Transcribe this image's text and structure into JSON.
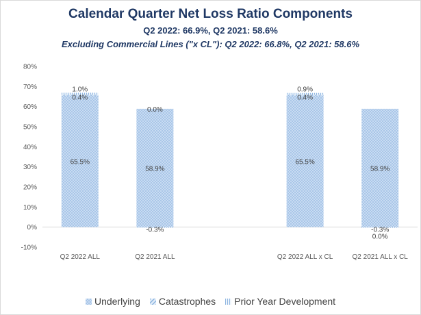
{
  "chart_data": {
    "type": "bar",
    "stacked": true,
    "title": "Calendar Quarter Net Loss Ratio Components",
    "subtitle": "Q2 2022: 66.9%, Q2 2021: 58.6%",
    "subtitle2": "Excluding Commercial Lines (\"x CL\"): Q2 2022: 66.8%, Q2 2021: 58.6%",
    "categories": [
      "Q2 2022 ALL",
      "Q2 2021 ALL",
      "",
      "Q2 2022 ALL x CL",
      "Q2 2021 ALL x CL"
    ],
    "series": [
      {
        "name": "Underlying",
        "values": [
          65.5,
          58.9,
          null,
          65.5,
          58.9
        ],
        "labels": [
          "65.5%",
          "58.9%",
          "",
          "65.5%",
          "58.9%"
        ],
        "color": "#a9c6e8"
      },
      {
        "name": "Catastrophes",
        "values": [
          0.4,
          0.0,
          null,
          0.4,
          0.0
        ],
        "labels": [
          "0.4%",
          "0.0%",
          "",
          "0.4%",
          "0.0%"
        ],
        "color": "#bdd5ee"
      },
      {
        "name": "Prior Year Development",
        "values": [
          1.0,
          -0.3,
          null,
          0.9,
          -0.3
        ],
        "labels": [
          "1.0%",
          "-0.3%",
          "",
          "0.9%",
          "-0.3%"
        ],
        "color": "#d6e6f6"
      }
    ],
    "ylim": [
      -10,
      80
    ],
    "yticks": [
      -10,
      0,
      10,
      20,
      30,
      40,
      50,
      60,
      70,
      80
    ],
    "ytick_labels": [
      "-10%",
      "0%",
      "10%",
      "20%",
      "30%",
      "40%",
      "50%",
      "60%",
      "70%",
      "80%"
    ],
    "xlabel": "",
    "ylabel": "",
    "grid": false,
    "legend_position": "bottom"
  }
}
